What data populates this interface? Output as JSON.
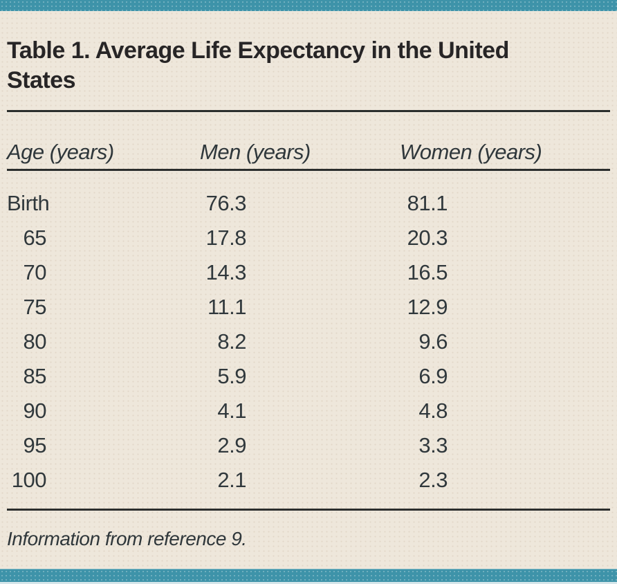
{
  "theme": {
    "accent_teal": "#3e93a9",
    "paper_cream": "#eee7db",
    "rule_color": "#2b2e2d",
    "text_color": "#30383c",
    "bottom_edge_strip": "#d6e6ea"
  },
  "table": {
    "title": "Table 1. Average Life Expectancy in the United\nStates",
    "title_full": "Table 1. Average Life Expectancy in the United States",
    "columns": {
      "age": "Age (years)",
      "men": "Men (years)",
      "women": "Women (years)"
    },
    "rows": [
      {
        "age": "Birth",
        "men": "76.3",
        "women": "81.1"
      },
      {
        "age": "65",
        "men": "17.8",
        "women": "20.3"
      },
      {
        "age": "70",
        "men": "14.3",
        "women": "16.5"
      },
      {
        "age": "75",
        "men": "11.1",
        "women": "12.9"
      },
      {
        "age": "80",
        "men": "8.2",
        "women": "9.6"
      },
      {
        "age": "85",
        "men": "5.9",
        "women": "6.9"
      },
      {
        "age": "90",
        "men": "4.1",
        "women": "4.8"
      },
      {
        "age": "95",
        "men": "2.9",
        "women": "3.3"
      },
      {
        "age": "100",
        "men": "2.1",
        "women": "2.3"
      }
    ],
    "footnote": "Information from reference 9."
  },
  "chart_data": {
    "type": "table",
    "title": "Table 1. Average Life Expectancy in the United States",
    "columns": [
      "Age (years)",
      "Men (years)",
      "Women (years)"
    ],
    "categories": [
      "Birth",
      "65",
      "70",
      "75",
      "80",
      "85",
      "90",
      "95",
      "100"
    ],
    "series": [
      {
        "name": "Men (years)",
        "values": [
          76.3,
          17.8,
          14.3,
          11.1,
          8.2,
          5.9,
          4.1,
          2.9,
          2.1
        ]
      },
      {
        "name": "Women (years)",
        "values": [
          81.1,
          20.3,
          16.5,
          12.9,
          9.6,
          6.9,
          4.8,
          3.3,
          2.3
        ]
      }
    ],
    "footnote": "Information from reference 9."
  }
}
